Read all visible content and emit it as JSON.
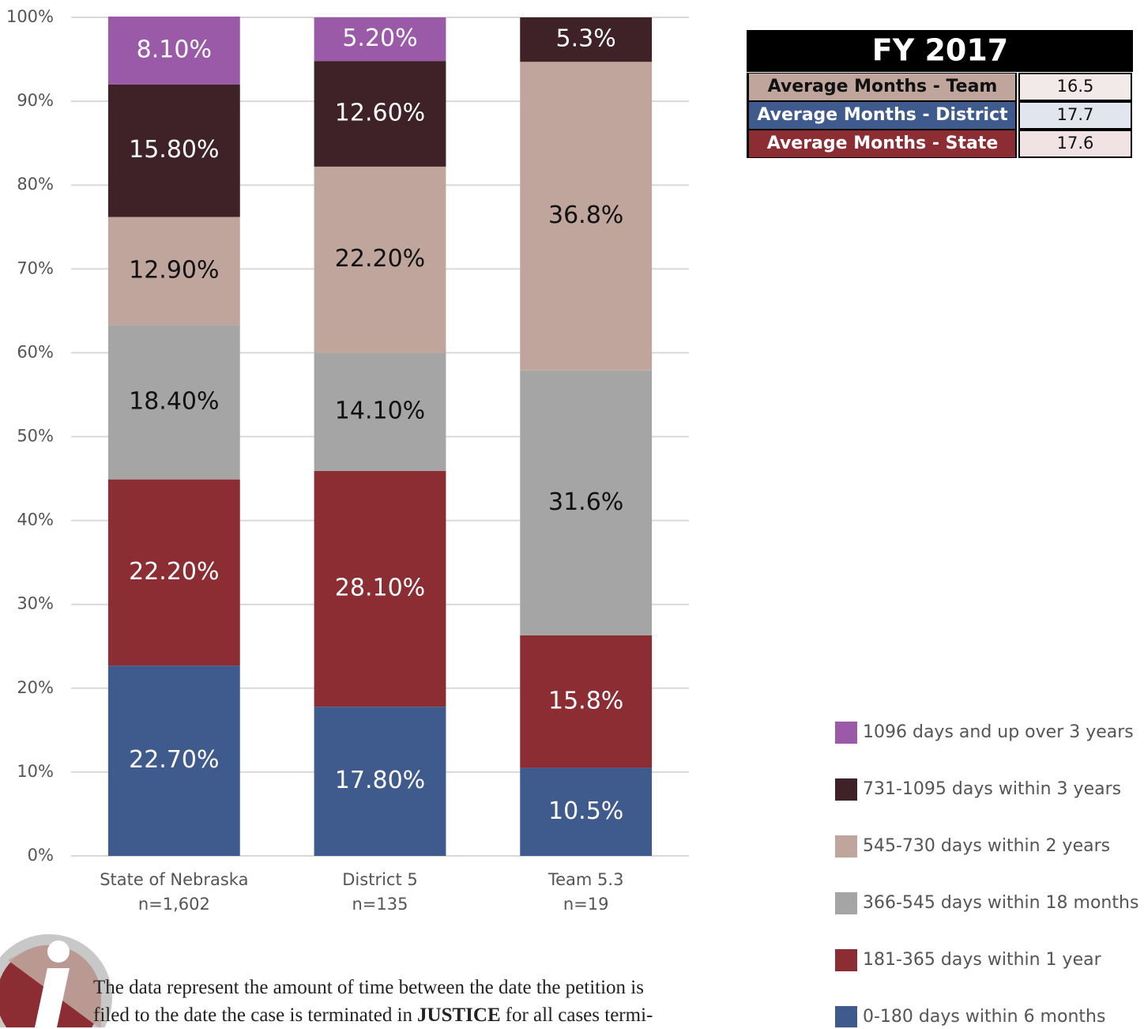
{
  "chart_data": {
    "type": "stacked_bar",
    "categories": [
      "State of Nebraska",
      "District 5",
      "Team 5.3"
    ],
    "category_notes": [
      "n=1,602",
      "n=135",
      "n=19"
    ],
    "series": [
      {
        "name": "0-180 days within 6 months",
        "color": "#3f5a8c",
        "label_color": "#ffffff",
        "values": [
          22.7,
          17.8,
          10.5
        ],
        "value_labels": [
          "22.70%",
          "17.80%",
          "10.5%"
        ]
      },
      {
        "name": "181-365 days within 1 year",
        "color": "#8b2d33",
        "label_color": "#ffffff",
        "values": [
          22.2,
          28.1,
          15.8
        ],
        "value_labels": [
          "22.20%",
          "28.10%",
          "15.8%"
        ]
      },
      {
        "name": "366-545 days within 18 months",
        "color": "#a5a5a5",
        "label_color": "#111111",
        "values": [
          18.4,
          14.1,
          31.6
        ],
        "value_labels": [
          "18.40%",
          "14.10%",
          "31.6%"
        ]
      },
      {
        "name": "545-730 days within 2 years",
        "color": "#bfa59c",
        "label_color": "#111111",
        "values": [
          12.9,
          22.2,
          36.8
        ],
        "value_labels": [
          "12.90%",
          "22.20%",
          "36.8%"
        ]
      },
      {
        "name": "731-1095 days within 3 years",
        "color": "#3f2128",
        "label_color": "#ffffff",
        "values": [
          15.8,
          12.6,
          5.3
        ],
        "value_labels": [
          "15.80%",
          "12.60%",
          "5.3%"
        ]
      },
      {
        "name": "1096 days and up over 3 years",
        "color": "#9a5aa8",
        "label_color": "#ffffff",
        "values": [
          8.1,
          5.2,
          null
        ],
        "value_labels": [
          "8.10%",
          "5.20%",
          null
        ]
      }
    ],
    "ylim": [
      0,
      100
    ],
    "yticks": [
      {
        "value": 0,
        "label": "0%"
      },
      {
        "value": 10,
        "label": "10%"
      },
      {
        "value": 20,
        "label": "20%"
      },
      {
        "value": 30,
        "label": "30%"
      },
      {
        "value": 40,
        "label": "40%"
      },
      {
        "value": 50,
        "label": "50%"
      },
      {
        "value": 60,
        "label": "60%"
      },
      {
        "value": 70,
        "label": "70%"
      },
      {
        "value": 80,
        "label": "80%"
      },
      {
        "value": 90,
        "label": "90%"
      },
      {
        "value": 100,
        "label": "100%"
      }
    ],
    "grid": true,
    "legend": "right"
  },
  "table": {
    "title": "FY 2017",
    "rows": [
      {
        "label": "Average Months - Team",
        "value": "16.5",
        "color": "#bfa59c",
        "text_color": "#111111",
        "value_bg": "#f2eae8"
      },
      {
        "label": "Average Months - District",
        "value": "17.7",
        "color": "#3f5a8c",
        "text_color": "#ffffff",
        "value_bg": "#e1e5ee"
      },
      {
        "label": "Average Months - State",
        "value": "17.6",
        "color": "#8b2d33",
        "text_color": "#ffffff",
        "value_bg": "#f1e2e3"
      }
    ]
  },
  "note": {
    "line1": "The data represent the amount of time between the date the petition is",
    "line2_before": "filed to the date the case is terminated in",
    "line2_bold": "JUSTICE",
    "line2_after": "for all cases termi-"
  }
}
